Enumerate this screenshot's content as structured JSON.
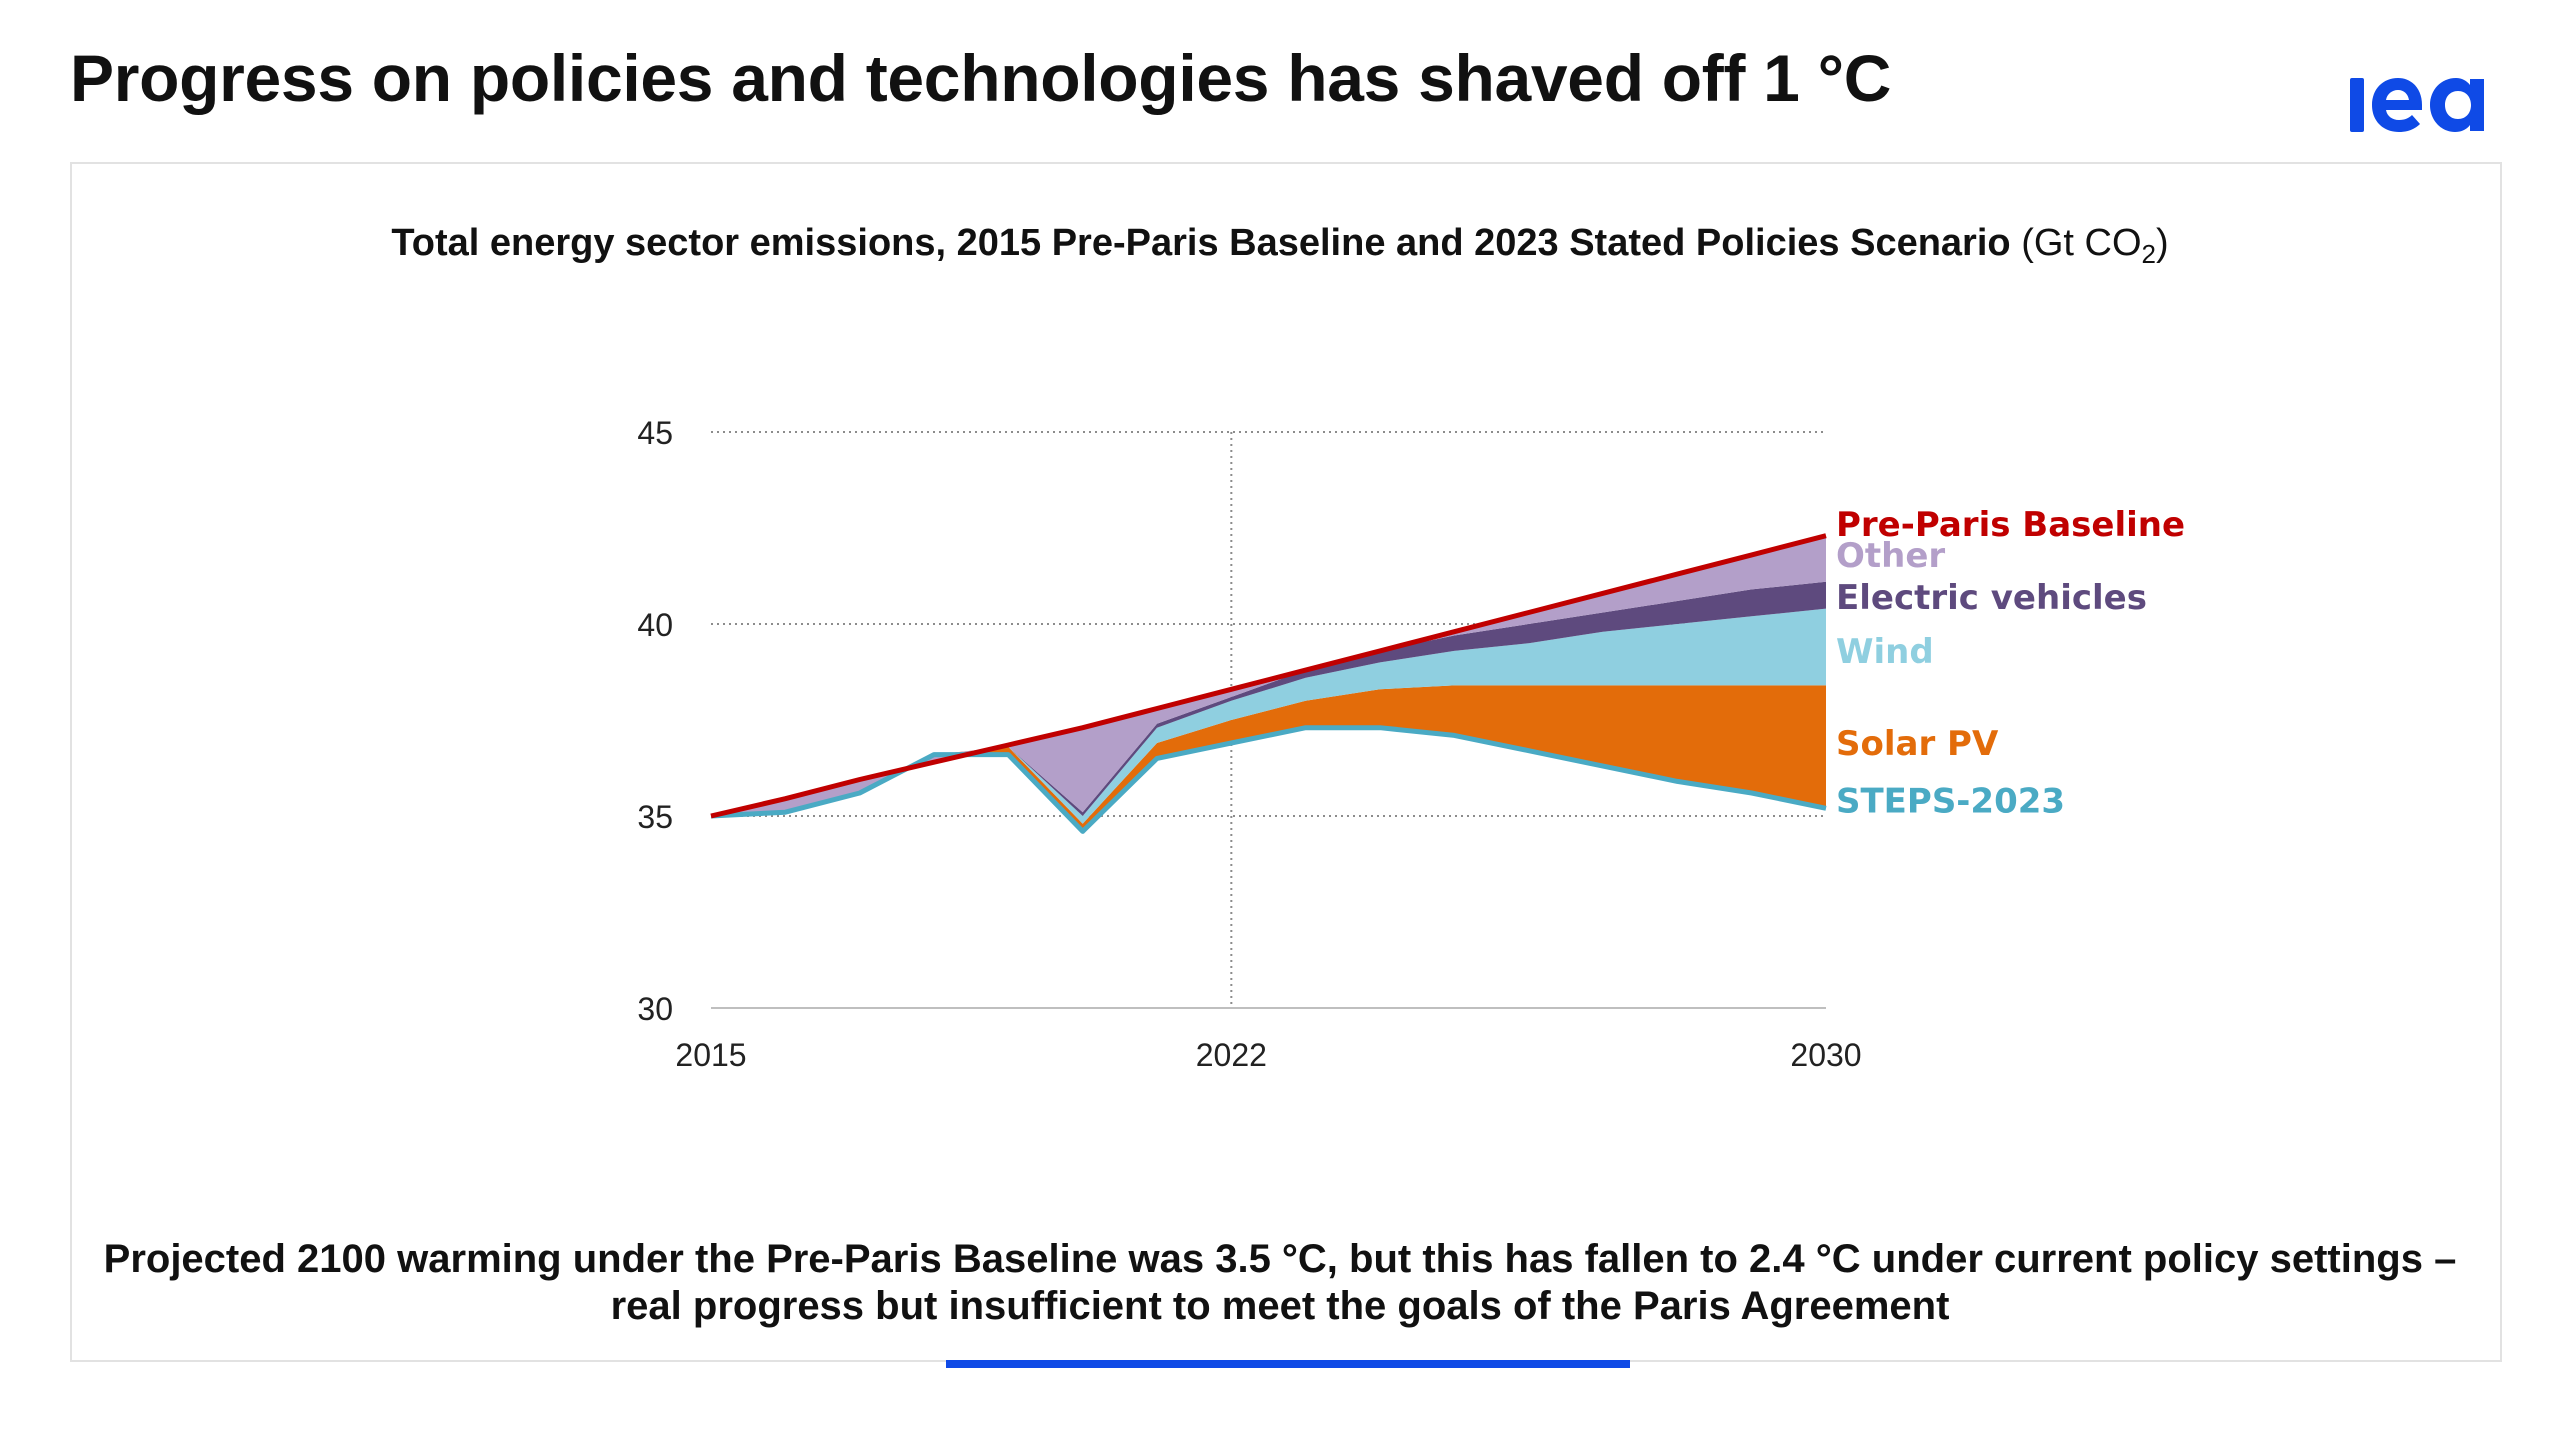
{
  "header": {
    "title": "Progress on policies and technologies has shaved off 1 °C",
    "logo_text": "iea"
  },
  "chart_title": {
    "main": "Total energy sector emissions, 2015 Pre-Paris Baseline and 2023 Stated Policies Scenario",
    "unit_prefix": "(Gt CO",
    "unit_sub": "2",
    "unit_suffix": ")"
  },
  "footnote": "Projected 2100 warming under the Pre-Paris Baseline was 3.5 °C, but this has fallen to 2.4 °C under current policy settings – real progress but insufficient to meet the goals of the Paris Agreement",
  "colors": {
    "baseline": "#c00000",
    "other": "#b39fc9",
    "ev": "#5e4a7e",
    "wind": "#8fcfe0",
    "solar": "#e36c0a",
    "steps": "#4aaac4",
    "accent": "#0f4ae6"
  },
  "chart_data": {
    "type": "area",
    "title": "Total energy sector emissions, 2015 Pre-Paris Baseline and 2023 Stated Policies Scenario (Gt CO2)",
    "ylim": [
      30,
      45
    ],
    "xlim": [
      2015,
      2030
    ],
    "yticks": [
      30,
      35,
      40,
      45
    ],
    "xticks": [
      2015,
      2022,
      2030
    ],
    "grid": "dotted horizontal at 35, 40, 45; dotted vertical at 2022",
    "x": [
      2015,
      2016,
      2017,
      2018,
      2019,
      2020,
      2021,
      2022,
      2023,
      2024,
      2025,
      2026,
      2027,
      2028,
      2029,
      2030
    ],
    "series": [
      {
        "name": "STEPS-2023",
        "values": [
          35.0,
          35.1,
          35.6,
          36.6,
          36.6,
          34.6,
          36.5,
          36.9,
          37.3,
          37.3,
          37.1,
          36.7,
          36.3,
          35.9,
          35.6,
          35.2
        ]
      },
      {
        "name": "Solar PV",
        "values": [
          35.0,
          35.1,
          35.6,
          36.6,
          36.8,
          34.8,
          36.9,
          37.5,
          38.0,
          38.3,
          38.4,
          38.4,
          38.4,
          38.4,
          38.4,
          38.4
        ]
      },
      {
        "name": "Wind",
        "values": [
          35.0,
          35.1,
          35.6,
          36.6,
          36.8,
          35.0,
          37.3,
          38.0,
          38.6,
          39.0,
          39.3,
          39.5,
          39.8,
          40.0,
          40.2,
          40.4
        ]
      },
      {
        "name": "Electric vehicles",
        "values": [
          35.0,
          35.1,
          35.6,
          36.6,
          36.8,
          35.1,
          37.4,
          38.1,
          38.8,
          39.3,
          39.7,
          40.0,
          40.3,
          40.6,
          40.9,
          41.1
        ]
      },
      {
        "name": "Other",
        "values": [
          35.0,
          35.45,
          35.95,
          36.4,
          36.85,
          37.3,
          37.8,
          38.3,
          38.8,
          39.3,
          39.8,
          40.3,
          40.8,
          41.3,
          41.8,
          42.3
        ]
      },
      {
        "name": "Pre-Paris Baseline",
        "values": [
          35.0,
          35.45,
          35.95,
          36.4,
          36.85,
          37.3,
          37.8,
          38.3,
          38.8,
          39.3,
          39.8,
          40.3,
          40.8,
          41.3,
          41.8,
          42.3
        ]
      }
    ],
    "legend": [
      {
        "label": "Pre-Paris Baseline",
        "value": 42.6,
        "color": "#c00000"
      },
      {
        "label": "Other",
        "value": 41.8,
        "color": "#b39fc9"
      },
      {
        "label": "Electric vehicles",
        "value": 40.7,
        "color": "#5e4a7e"
      },
      {
        "label": "Wind",
        "value": 39.3,
        "color": "#8fcfe0"
      },
      {
        "label": "Solar PV",
        "value": 36.9,
        "color": "#e36c0a"
      },
      {
        "label": "STEPS-2023",
        "value": 35.4,
        "color": "#4aaac4"
      }
    ]
  }
}
